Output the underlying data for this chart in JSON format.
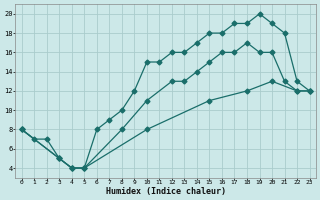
{
  "xlabel": "Humidex (Indice chaleur)",
  "ylabel": "",
  "xlim": [
    -0.5,
    23.5
  ],
  "ylim": [
    3,
    21
  ],
  "xticks": [
    0,
    1,
    2,
    3,
    4,
    5,
    6,
    7,
    8,
    9,
    10,
    11,
    12,
    13,
    14,
    15,
    16,
    17,
    18,
    19,
    20,
    21,
    22,
    23
  ],
  "yticks": [
    4,
    6,
    8,
    10,
    12,
    14,
    16,
    18,
    20
  ],
  "bg_color": "#cce8e8",
  "grid_color": "#aacccc",
  "line_color": "#1a6e6a",
  "line1_x": [
    0,
    1,
    2,
    3,
    4,
    5,
    6,
    7,
    8,
    9,
    10,
    11,
    12,
    13,
    14,
    15,
    16,
    17,
    18,
    19,
    20,
    21,
    22,
    23
  ],
  "line1_y": [
    8,
    7,
    7,
    5,
    4,
    4,
    8,
    9,
    10,
    12,
    15,
    15,
    16,
    16,
    17,
    18,
    18,
    19,
    19,
    20,
    19,
    18,
    13,
    12
  ],
  "line2_x": [
    0,
    3,
    4,
    5,
    8,
    10,
    12,
    13,
    14,
    15,
    16,
    17,
    18,
    19,
    20,
    21,
    22,
    23
  ],
  "line2_y": [
    8,
    5,
    4,
    4,
    8,
    11,
    13,
    13,
    14,
    15,
    16,
    16,
    17,
    16,
    16,
    13,
    12,
    12
  ],
  "line3_x": [
    0,
    3,
    4,
    5,
    10,
    15,
    18,
    20,
    22,
    23
  ],
  "line3_y": [
    8,
    5,
    4,
    4,
    8,
    11,
    12,
    13,
    12,
    12
  ]
}
